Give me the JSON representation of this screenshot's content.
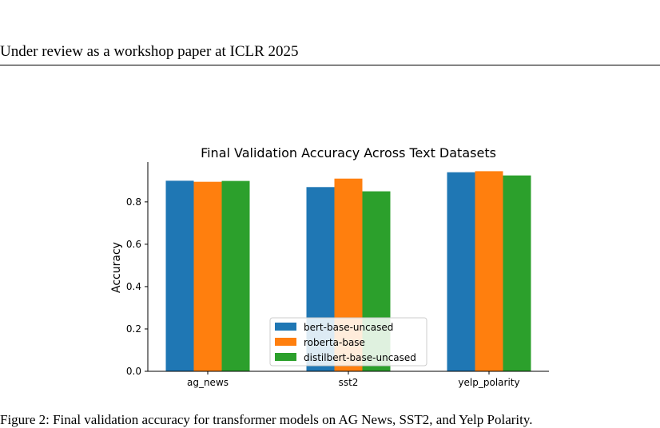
{
  "header": {
    "text": "Under review as a workshop paper at ICLR 2025"
  },
  "caption": {
    "text": "Figure 2: Final validation accuracy for transformer models on AG News, SST2, and Yelp Polarity."
  },
  "chart_data": {
    "type": "bar",
    "title": "Final Validation Accuracy Across Text Datasets",
    "xlabel": "",
    "ylabel": "Accuracy",
    "categories": [
      "ag_news",
      "sst2",
      "yelp_polarity"
    ],
    "series": [
      {
        "name": "bert-base-uncased",
        "color": "#1f77b4",
        "values": [
          0.9,
          0.87,
          0.94
        ]
      },
      {
        "name": "roberta-base",
        "color": "#ff7f0e",
        "values": [
          0.895,
          0.91,
          0.945
        ]
      },
      {
        "name": "distilbert-base-uncased",
        "color": "#2ca02c",
        "values": [
          0.899,
          0.85,
          0.925
        ]
      }
    ],
    "ylim": [
      0,
      0.988
    ],
    "yticks": [
      "0.0",
      "0.2",
      "0.4",
      "0.6",
      "0.8"
    ],
    "legend_position": "lower-center",
    "grid": false
  }
}
